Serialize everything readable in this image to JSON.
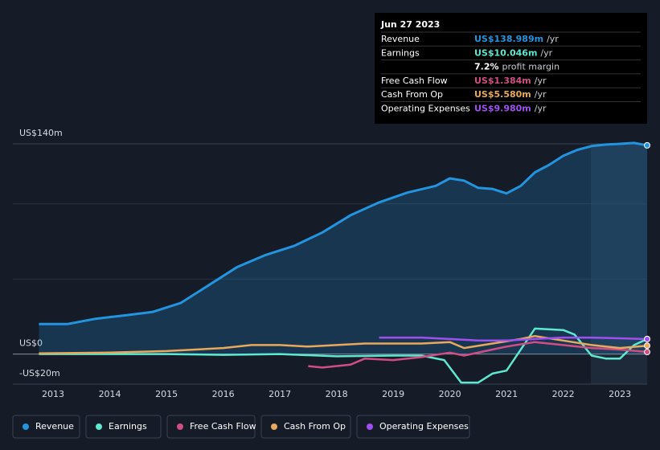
{
  "chart_data": {
    "type": "line",
    "xlim": [
      2012.29,
      2023.48
    ],
    "xticks": [
      2013,
      2014,
      2015,
      2016,
      2017,
      2018,
      2019,
      2020,
      2021,
      2022,
      2023
    ],
    "ylim": [
      -20,
      140
    ],
    "yticks": [
      {
        "value": 140,
        "label": "US$140m"
      },
      {
        "value": 0,
        "label": "US$0"
      },
      {
        "value": -20,
        "label": "-US$20m"
      }
    ],
    "ygrid": [
      50,
      100
    ],
    "series": [
      {
        "name": "Revenue",
        "color": "#2394df",
        "x": [
          2012.75,
          2013.25,
          2013.75,
          2014.25,
          2014.75,
          2015.25,
          2015.75,
          2016.25,
          2016.75,
          2017.25,
          2017.75,
          2018.25,
          2018.75,
          2019.25,
          2019.75,
          2020.0,
          2020.25,
          2020.5,
          2020.75,
          2021.0,
          2021.25,
          2021.5,
          2021.75,
          2022.0,
          2022.25,
          2022.5,
          2022.75,
          2023.0,
          2023.25,
          2023.48
        ],
        "values": [
          20,
          20,
          23.5,
          25.7,
          28,
          34,
          46,
          58,
          66,
          72,
          81,
          92.5,
          101,
          107.5,
          112,
          117,
          115.5,
          110.7,
          110,
          107,
          112,
          121,
          126,
          132,
          136,
          138.5,
          139.5,
          140,
          140.6,
          138.989
        ]
      },
      {
        "name": "Earnings",
        "color": "#5ee8cf",
        "x": [
          2012.75,
          2014.0,
          2015.0,
          2016.0,
          2017.0,
          2018.0,
          2019.0,
          2019.5,
          2019.9,
          2020.2,
          2020.5,
          2020.75,
          2021.0,
          2021.5,
          2022.0,
          2022.2,
          2022.5,
          2022.75,
          2023.0,
          2023.25,
          2023.48
        ],
        "values": [
          0,
          0,
          0,
          -0.5,
          0,
          -1.5,
          -1,
          -1,
          -4,
          -19,
          -19,
          -13,
          -11,
          17,
          16,
          13,
          -1,
          -3,
          -3,
          6,
          10.046
        ]
      },
      {
        "name": "Free Cash Flow",
        "color": "#d14d84",
        "x": [
          2017.5,
          2017.75,
          2018.25,
          2018.5,
          2019.0,
          2019.5,
          2020.0,
          2020.25,
          2020.75,
          2021.0,
          2021.5,
          2022.0,
          2022.5,
          2023.0,
          2023.48
        ],
        "values": [
          -8,
          -9,
          -7,
          -3,
          -4,
          -2,
          1,
          -1,
          3,
          5,
          8,
          6,
          4,
          3,
          1.384
        ]
      },
      {
        "name": "Cash From Op",
        "color": "#e8a95c",
        "x": [
          2012.75,
          2014.0,
          2015.0,
          2016.0,
          2016.5,
          2017.0,
          2017.5,
          2018.5,
          2019.5,
          2020.0,
          2020.25,
          2020.75,
          2021.25,
          2021.5,
          2022.0,
          2022.5,
          2023.0,
          2023.48
        ],
        "values": [
          0.5,
          1,
          2,
          4,
          6,
          6,
          5,
          7,
          7,
          8,
          4,
          7,
          10,
          12,
          9,
          6,
          4,
          5.58
        ]
      },
      {
        "name": "Operating Expenses",
        "color": "#a04ff0",
        "x": [
          2018.75,
          2019.5,
          2020.0,
          2020.5,
          2021.0,
          2021.5,
          2022.0,
          2022.5,
          2023.0,
          2023.48
        ],
        "values": [
          11,
          11,
          10,
          9,
          9,
          10,
          11,
          11,
          10.5,
          9.98
        ]
      }
    ],
    "tooltip": {
      "date": "Jun 27 2023",
      "rows": [
        {
          "label": "Revenue",
          "value": "US$138.989m",
          "unit": "/yr",
          "color": "#2394df"
        },
        {
          "label": "Earnings",
          "value": "US$10.046m",
          "unit": "/yr",
          "color": "#5ee8cf"
        },
        {
          "value": "7.2%",
          "unit": "profit margin",
          "color": "#ffffff"
        },
        {
          "label": "Free Cash Flow",
          "value": "US$1.384m",
          "unit": "/yr",
          "color": "#d14d84"
        },
        {
          "label": "Cash From Op",
          "value": "US$5.580m",
          "unit": "/yr",
          "color": "#e8a95c"
        },
        {
          "label": "Operating Expenses",
          "value": "US$9.980m",
          "unit": "/yr",
          "color": "#a04ff0"
        }
      ]
    }
  }
}
